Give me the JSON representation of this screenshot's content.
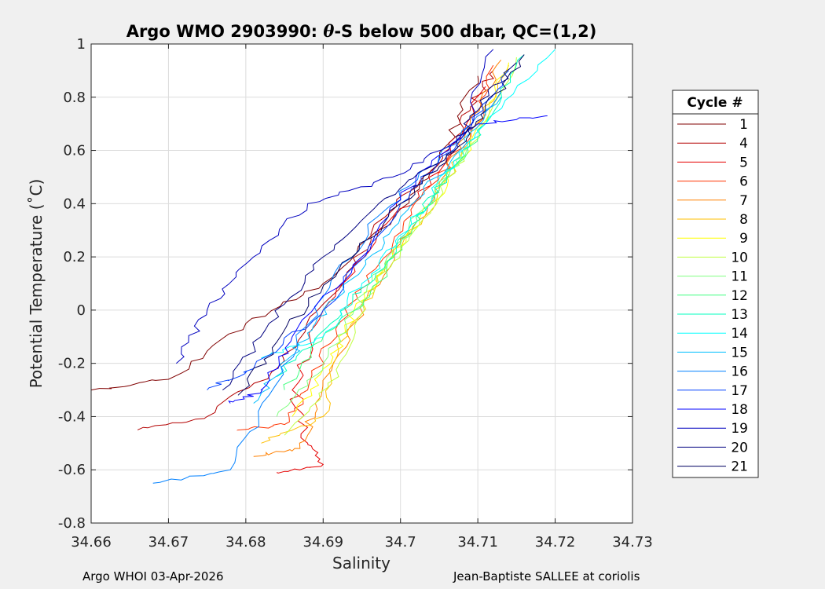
{
  "chart_data": {
    "type": "line",
    "title_prefix": "Argo WMO 2903990: ",
    "title_theta": "θ",
    "title_suffix": "-S below 500 dbar,  QC=(1,2)",
    "xlabel": "Salinity",
    "ylabel": "Potential Temperature (˚C)",
    "xlim": [
      34.66,
      34.73
    ],
    "ylim": [
      -0.8,
      1.0
    ],
    "x_ticks": [
      "34.66",
      "34.67",
      "34.68",
      "34.69",
      "34.7",
      "34.71",
      "34.72",
      "34.73"
    ],
    "y_ticks": [
      "-0.8",
      "-0.6",
      "-0.4",
      "-0.2",
      "0",
      "0.2",
      "0.4",
      "0.6",
      "0.8",
      "1"
    ],
    "grid": true,
    "legend_title": "Cycle #",
    "legend_position": "right-outside",
    "series": [
      {
        "name": "1",
        "color": "#800000",
        "x": [
          34.66,
          34.67,
          34.68,
          34.69,
          34.7,
          34.706,
          34.71
        ],
        "y": [
          -0.3,
          -0.26,
          -0.05,
          0.1,
          0.38,
          0.62,
          0.88
        ]
      },
      {
        "name": "4",
        "color": "#b30000",
        "x": [
          34.666,
          34.675,
          34.684,
          34.691,
          34.698,
          34.705,
          34.709,
          34.712
        ],
        "y": [
          -0.45,
          -0.4,
          -0.22,
          0.05,
          0.35,
          0.55,
          0.75,
          0.9
        ]
      },
      {
        "name": "5",
        "color": "#e60000",
        "x": [
          34.684,
          34.69,
          34.688,
          34.686,
          34.69,
          34.697,
          34.705,
          34.711
        ],
        "y": [
          -0.61,
          -0.58,
          -0.5,
          -0.3,
          0.0,
          0.28,
          0.52,
          0.84
        ]
      },
      {
        "name": "6",
        "color": "#ff3300",
        "x": [
          34.679,
          34.685,
          34.688,
          34.692,
          34.699,
          34.704,
          34.71,
          34.712
        ],
        "y": [
          -0.45,
          -0.43,
          -0.3,
          -0.05,
          0.25,
          0.47,
          0.7,
          0.92
        ]
      },
      {
        "name": "7",
        "color": "#ff8000",
        "x": [
          34.681,
          34.687,
          34.689,
          34.694,
          34.7,
          34.705,
          34.709,
          34.713
        ],
        "y": [
          -0.55,
          -0.52,
          -0.35,
          -0.05,
          0.25,
          0.45,
          0.7,
          0.94
        ]
      },
      {
        "name": "8",
        "color": "#ffbf00",
        "x": [
          34.682,
          34.69,
          34.692,
          34.697,
          34.703,
          34.708,
          34.714
        ],
        "y": [
          -0.5,
          -0.4,
          -0.15,
          0.1,
          0.35,
          0.6,
          0.92
        ]
      },
      {
        "name": "9",
        "color": "#ffff00",
        "x": [
          34.686,
          34.691,
          34.694,
          34.699,
          34.704,
          34.709,
          34.714
        ],
        "y": [
          -0.4,
          -0.2,
          0.0,
          0.2,
          0.4,
          0.62,
          0.93
        ]
      },
      {
        "name": "10",
        "color": "#bfff40",
        "x": [
          34.685,
          34.692,
          34.695,
          34.7,
          34.705,
          34.709,
          34.715
        ],
        "y": [
          -0.47,
          -0.25,
          0.03,
          0.22,
          0.42,
          0.62,
          0.95
        ]
      },
      {
        "name": "11",
        "color": "#80ff80",
        "x": [
          34.684,
          34.69,
          34.694,
          34.699,
          34.704,
          34.709
        ],
        "y": [
          -0.4,
          -0.2,
          0.0,
          0.22,
          0.42,
          0.62
        ]
      },
      {
        "name": "12",
        "color": "#40ff80",
        "x": [
          34.685,
          34.69,
          34.696,
          34.7,
          34.705,
          34.71
        ],
        "y": [
          -0.3,
          -0.1,
          0.05,
          0.25,
          0.45,
          0.65
        ]
      },
      {
        "name": "13",
        "color": "#00ffbf",
        "x": [
          34.684,
          34.691,
          34.696,
          34.701,
          34.706,
          34.711,
          34.716
        ],
        "y": [
          -0.25,
          -0.05,
          0.1,
          0.3,
          0.5,
          0.7,
          0.96
        ]
      },
      {
        "name": "14",
        "color": "#00ffff",
        "x": [
          34.682,
          34.69,
          34.695,
          34.701,
          34.706,
          34.711,
          34.72
        ],
        "y": [
          -0.18,
          -0.1,
          0.1,
          0.3,
          0.52,
          0.7,
          0.98
        ]
      },
      {
        "name": "15",
        "color": "#00bfff",
        "x": [
          34.681,
          34.686,
          34.689,
          34.695,
          34.7,
          34.707,
          34.713
        ],
        "y": [
          -0.35,
          -0.17,
          -0.05,
          0.15,
          0.35,
          0.58,
          0.8
        ]
      },
      {
        "name": "16",
        "color": "#0080ff",
        "x": [
          34.668,
          34.678,
          34.683,
          34.69,
          34.697,
          34.705,
          34.713
        ],
        "y": [
          -0.65,
          -0.6,
          -0.32,
          0.05,
          0.35,
          0.58,
          0.82
        ]
      },
      {
        "name": "17",
        "color": "#0040ff",
        "x": [
          34.675,
          34.681,
          34.69,
          34.7,
          34.708,
          34.714
        ],
        "y": [
          -0.3,
          -0.22,
          0.0,
          0.4,
          0.65,
          0.9
        ]
      },
      {
        "name": "18",
        "color": "#0000ff",
        "x": [
          34.678,
          34.682,
          34.686,
          34.695,
          34.702,
          34.71,
          34.719
        ],
        "y": [
          -0.35,
          -0.3,
          -0.1,
          0.2,
          0.5,
          0.7,
          0.73
        ]
      },
      {
        "name": "19",
        "color": "#0000bf",
        "x": [
          34.671,
          34.675,
          34.681,
          34.688,
          34.699,
          34.708,
          34.712
        ],
        "y": [
          -0.2,
          0.0,
          0.2,
          0.4,
          0.5,
          0.65,
          0.98
        ]
      },
      {
        "name": "20",
        "color": "#000080",
        "x": [
          34.677,
          34.683,
          34.69,
          34.698,
          34.706,
          34.71,
          34.715
        ],
        "y": [
          -0.3,
          -0.05,
          0.2,
          0.42,
          0.58,
          0.75,
          0.93
        ]
      },
      {
        "name": "21",
        "color": "#000060",
        "x": [
          34.679,
          34.684,
          34.692,
          34.7,
          34.707,
          34.711,
          34.716
        ],
        "y": [
          -0.32,
          -0.12,
          0.15,
          0.4,
          0.6,
          0.75,
          0.96
        ]
      }
    ]
  },
  "footer": {
    "left": "Argo WHOI 03-Apr-2026",
    "right": "Jean-Baptiste SALLEE at coriolis"
  }
}
